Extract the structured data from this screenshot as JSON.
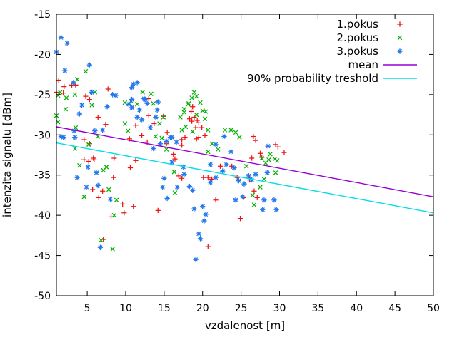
{
  "chart_data": {
    "type": "scatter",
    "title": "",
    "xlabel": "vzdalenost [m]",
    "ylabel": "intenzita signalu [dBm]",
    "xlim": [
      1,
      50
    ],
    "ylim": [
      -50,
      -15
    ],
    "xticks": [
      5,
      10,
      15,
      20,
      25,
      30,
      35,
      40,
      45,
      50
    ],
    "yticks": [
      -15,
      -20,
      -25,
      -30,
      -35,
      -40,
      -45,
      -50
    ],
    "grid": false,
    "legend_position": "top-right-inside",
    "background_color": "#ffffff",
    "axis_color": "#000000",
    "series": [
      {
        "name": "1.pokus",
        "kind": "scatter",
        "marker": "plus",
        "color": "#ee1111",
        "points": [
          [
            1.0,
            -24.7
          ],
          [
            1.3,
            -23.2
          ],
          [
            1.9,
            -24.8
          ],
          [
            2.0,
            -24.0
          ],
          [
            3.0,
            -23.8
          ],
          [
            3.5,
            -23.8
          ],
          [
            4.8,
            -25.2
          ],
          [
            5.3,
            -25.6
          ],
          [
            7.7,
            -24.3
          ],
          [
            6.4,
            -27.8
          ],
          [
            7.4,
            -28.7
          ],
          [
            4.6,
            -30.6
          ],
          [
            5.3,
            -31.1
          ],
          [
            4.6,
            -33.1
          ],
          [
            5.2,
            -33.3
          ],
          [
            5.9,
            -33.1
          ],
          [
            5.8,
            -32.9
          ],
          [
            8.5,
            -32.9
          ],
          [
            8.4,
            -35.3
          ],
          [
            5.7,
            -36.8
          ],
          [
            7.0,
            -37.0
          ],
          [
            6.5,
            -37.8
          ],
          [
            9.6,
            -38.6
          ],
          [
            9.8,
            -39.7
          ],
          [
            8.1,
            -40.2
          ],
          [
            7.1,
            -43.0
          ],
          [
            11.3,
            -33.2
          ],
          [
            10.6,
            -34.1
          ],
          [
            13.0,
            -25.5
          ],
          [
            14.9,
            -27.7
          ],
          [
            11.3,
            -28.8
          ],
          [
            13.0,
            -27.6
          ],
          [
            13.7,
            -28.6
          ],
          [
            12.1,
            -30.1
          ],
          [
            10.5,
            -30.5
          ],
          [
            12.8,
            -30.9
          ],
          [
            15.4,
            -29.7
          ],
          [
            15.3,
            -31.1
          ],
          [
            16.2,
            -32.4
          ],
          [
            16.4,
            -33.0
          ],
          [
            17.3,
            -30.6
          ],
          [
            16.9,
            -35.1
          ],
          [
            11.0,
            -38.9
          ],
          [
            14.2,
            -39.4
          ],
          [
            18.7,
            -26.5
          ],
          [
            18.9,
            -27.8
          ],
          [
            18.6,
            -28.3
          ],
          [
            19.5,
            -28.5
          ],
          [
            19.9,
            -29.1
          ],
          [
            20.3,
            -30.1
          ],
          [
            19.2,
            -30.5
          ],
          [
            18.5,
            -27.1
          ],
          [
            19.3,
            -28.2
          ],
          [
            19.1,
            -29.1
          ],
          [
            18.3,
            -28.0
          ],
          [
            17.7,
            -30.3
          ],
          [
            19.5,
            -30.3
          ],
          [
            17.3,
            -31.3
          ],
          [
            17.3,
            -35.4
          ],
          [
            20.1,
            -35.3
          ],
          [
            20.7,
            -35.3
          ],
          [
            21.2,
            -35.5
          ],
          [
            21.7,
            -38.1
          ],
          [
            22.3,
            -33.9
          ],
          [
            23.8,
            -33.9
          ],
          [
            20.7,
            -43.9
          ],
          [
            24.5,
            -35.3
          ],
          [
            26.1,
            -35.6
          ],
          [
            25.3,
            -37.8
          ],
          [
            26.7,
            -37.0
          ],
          [
            27.1,
            -37.8
          ],
          [
            24.9,
            -40.4
          ],
          [
            26.6,
            -30.2
          ],
          [
            26.9,
            -30.7
          ],
          [
            28.5,
            -31.4
          ],
          [
            29.5,
            -31.2
          ],
          [
            29.8,
            -31.5
          ],
          [
            30.6,
            -32.2
          ],
          [
            27.5,
            -32.3
          ],
          [
            26.4,
            -32.9
          ],
          [
            27.7,
            -32.8
          ]
        ]
      },
      {
        "name": "2.pokus",
        "kind": "scatter",
        "marker": "cross",
        "color": "#00b000",
        "points": [
          [
            4.8,
            -22.1
          ],
          [
            3.7,
            -23.1
          ],
          [
            1.5,
            -24.7
          ],
          [
            1.2,
            -25.1
          ],
          [
            3.4,
            -25.0
          ],
          [
            2.3,
            -25.4
          ],
          [
            2.2,
            -26.8
          ],
          [
            5.6,
            -26.3
          ],
          [
            6.0,
            -24.7
          ],
          [
            1.0,
            -27.6
          ],
          [
            1.2,
            -28.4
          ],
          [
            3.5,
            -29.1
          ],
          [
            6.4,
            -30.2
          ],
          [
            5.2,
            -31.2
          ],
          [
            3.4,
            -31.7
          ],
          [
            4.0,
            -33.8
          ],
          [
            7.5,
            -34.0
          ],
          [
            7.1,
            -34.4
          ],
          [
            7.8,
            -36.8
          ],
          [
            4.6,
            -37.7
          ],
          [
            8.8,
            -38.1
          ],
          [
            8.5,
            -40.0
          ],
          [
            6.8,
            -43.1
          ],
          [
            8.3,
            -44.2
          ],
          [
            12.2,
            -24.7
          ],
          [
            13.3,
            -24.9
          ],
          [
            10.7,
            -25.8
          ],
          [
            9.9,
            -26.0
          ],
          [
            11.5,
            -26.2
          ],
          [
            13.6,
            -26.1
          ],
          [
            14.9,
            -27.8
          ],
          [
            14.4,
            -28.6
          ],
          [
            9.9,
            -28.6
          ],
          [
            10.3,
            -29.5
          ],
          [
            13.9,
            -30.2
          ],
          [
            14.7,
            -30.4
          ],
          [
            15.3,
            -31.8
          ],
          [
            16.3,
            -34.6
          ],
          [
            16.4,
            -37.2
          ],
          [
            18.9,
            -24.7
          ],
          [
            18.6,
            -25.4
          ],
          [
            19.2,
            -25.2
          ],
          [
            19.7,
            -26.0
          ],
          [
            18.1,
            -26.2
          ],
          [
            17.6,
            -26.8
          ],
          [
            20.0,
            -27.0
          ],
          [
            19.2,
            -27.5
          ],
          [
            20.3,
            -28.0
          ],
          [
            20.7,
            -29.4
          ],
          [
            17.6,
            -27.2
          ],
          [
            17.1,
            -27.8
          ],
          [
            18.2,
            -26.1
          ],
          [
            20.4,
            -27.1
          ],
          [
            17.8,
            -29.0
          ],
          [
            17.3,
            -29.4
          ],
          [
            18.7,
            -29.6
          ],
          [
            21.2,
            -31.1
          ],
          [
            22.0,
            -31.8
          ],
          [
            20.7,
            -32.1
          ],
          [
            22.9,
            -29.4
          ],
          [
            23.7,
            -29.4
          ],
          [
            24.3,
            -29.7
          ],
          [
            24.8,
            -30.3
          ],
          [
            28.8,
            -32.4
          ],
          [
            25.7,
            -33.9
          ],
          [
            27.5,
            -36.5
          ],
          [
            28.0,
            -35.5
          ],
          [
            26.7,
            -38.7
          ],
          [
            26.5,
            -37.5
          ],
          [
            28.2,
            -33.5
          ],
          [
            29.5,
            -34.7
          ],
          [
            29.4,
            -33.0
          ],
          [
            27.7,
            -32.9
          ],
          [
            28.6,
            -33.1
          ],
          [
            29.7,
            -33.2
          ]
        ]
      },
      {
        "name": "3.pokus",
        "kind": "scatter",
        "marker": "asterisk",
        "color": "#2277ee",
        "points": [
          [
            1.6,
            -17.9
          ],
          [
            2.4,
            -18.6
          ],
          [
            1.0,
            -19.7
          ],
          [
            2.1,
            -22.0
          ],
          [
            5.3,
            -21.3
          ],
          [
            3.2,
            -23.5
          ],
          [
            5.6,
            -24.7
          ],
          [
            8.3,
            -25.0
          ],
          [
            8.7,
            -25.1
          ],
          [
            7.6,
            -26.5
          ],
          [
            4.3,
            -26.3
          ],
          [
            4.0,
            -27.4
          ],
          [
            3.3,
            -29.5
          ],
          [
            6.0,
            -29.5
          ],
          [
            7.0,
            -29.4
          ],
          [
            1.9,
            -30.3
          ],
          [
            1.6,
            -30.2
          ],
          [
            3.4,
            -30.3
          ],
          [
            5.1,
            -34.0
          ],
          [
            3.7,
            -35.3
          ],
          [
            6.2,
            -34.7
          ],
          [
            4.9,
            -36.5
          ],
          [
            6.4,
            -36.3
          ],
          [
            8.0,
            -38.0
          ],
          [
            6.7,
            -44.0
          ],
          [
            11.0,
            -23.7
          ],
          [
            11.5,
            -23.5
          ],
          [
            10.8,
            -24.1
          ],
          [
            10.8,
            -25.6
          ],
          [
            12.5,
            -25.6
          ],
          [
            12.4,
            -25.5
          ],
          [
            14.2,
            -25.9
          ],
          [
            10.4,
            -26.2
          ],
          [
            10.8,
            -26.6
          ],
          [
            12.8,
            -26.1
          ],
          [
            11.8,
            -26.9
          ],
          [
            14.1,
            -26.9
          ],
          [
            11.5,
            -27.8
          ],
          [
            12.1,
            -28.1
          ],
          [
            13.9,
            -27.8
          ],
          [
            13.2,
            -29.1
          ],
          [
            15.8,
            -30.3
          ],
          [
            15.3,
            -30.8
          ],
          [
            16.6,
            -30.9
          ],
          [
            16.0,
            -30.3
          ],
          [
            13.6,
            -31.7
          ],
          [
            14.5,
            -31.1
          ],
          [
            16.0,
            -33.4
          ],
          [
            15.0,
            -35.4
          ],
          [
            14.8,
            -36.5
          ],
          [
            16.7,
            -36.5
          ],
          [
            15.4,
            -37.9
          ],
          [
            17.5,
            -34.0
          ],
          [
            17.6,
            -34.9
          ],
          [
            18.3,
            -36.4
          ],
          [
            18.7,
            -36.9
          ],
          [
            21.0,
            -33.7
          ],
          [
            21.7,
            -35.3
          ],
          [
            21.0,
            -35.9
          ],
          [
            18.9,
            -39.2
          ],
          [
            20.0,
            -38.9
          ],
          [
            20.4,
            -39.9
          ],
          [
            20.2,
            -40.7
          ],
          [
            19.5,
            -42.3
          ],
          [
            19.7,
            -42.9
          ],
          [
            19.1,
            -45.5
          ],
          [
            22.8,
            -30.2
          ],
          [
            21.7,
            -31.2
          ],
          [
            23.7,
            -32.1
          ],
          [
            22.6,
            -34.5
          ],
          [
            23.1,
            -33.7
          ],
          [
            24.1,
            -34.1
          ],
          [
            24.3,
            -38.1
          ],
          [
            25.2,
            -37.7
          ],
          [
            27.8,
            -39.3
          ],
          [
            28.0,
            -38.1
          ],
          [
            29.3,
            -38.1
          ],
          [
            29.6,
            -39.3
          ],
          [
            24.7,
            -35.7
          ],
          [
            25.4,
            -36.1
          ],
          [
            26.0,
            -35.1
          ],
          [
            26.4,
            -35.6
          ],
          [
            26.9,
            -34.9
          ],
          [
            28.4,
            -34.7
          ],
          [
            28.5,
            -31.4
          ]
        ]
      },
      {
        "name": "mean",
        "kind": "line",
        "color": "#9400d3",
        "points": [
          [
            1,
            -29.0
          ],
          [
            50,
            -37.7
          ]
        ]
      },
      {
        "name": "90% probability treshold",
        "kind": "line",
        "color": "#00dde8",
        "points": [
          [
            1,
            -31.0
          ],
          [
            50,
            -39.7
          ]
        ]
      }
    ]
  }
}
